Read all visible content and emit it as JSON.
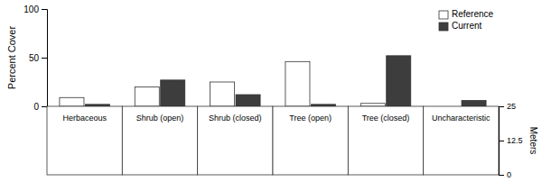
{
  "chart_data": {
    "type": "bar",
    "categories": [
      "Herbaceous",
      "Shrub (open)",
      "Shrub (closed)",
      "Tree (open)",
      "Tree (closed)",
      "Uncharacteristic"
    ],
    "series": [
      {
        "name": "Reference",
        "color": "#ffffff",
        "values": [
          9,
          20,
          25,
          46,
          3,
          0
        ]
      },
      {
        "name": "Current",
        "color": "#3d3d3d",
        "values": [
          2,
          27,
          12,
          2,
          52,
          6
        ]
      }
    ],
    "ylabel": "Percent Cover",
    "ylim": [
      0,
      100
    ],
    "yticks": [
      0,
      50,
      100
    ],
    "y2label": "Meters",
    "y2lim": [
      0,
      25
    ],
    "y2ticks": [
      0,
      12.5,
      25
    ],
    "legend": "upper right"
  }
}
